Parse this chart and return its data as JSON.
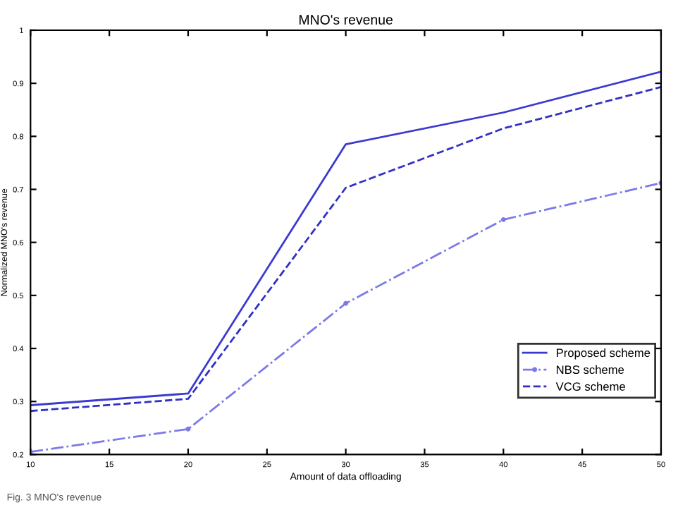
{
  "chart_data": {
    "type": "line",
    "title": "MNO's revenue",
    "xlabel": "Amount of data offloading",
    "ylabel": "Normalized MNO's revenue",
    "x": [
      10,
      20,
      30,
      40,
      50
    ],
    "series": [
      {
        "name": "Proposed scheme",
        "color": "#3a3ad0",
        "line_style": "solid",
        "marker": "none",
        "values": [
          0.293,
          0.315,
          0.785,
          0.845,
          0.922
        ]
      },
      {
        "name": "NBS scheme",
        "color": "#7a7ae8",
        "line_style": "dashdot",
        "marker": "point",
        "values": [
          0.205,
          0.248,
          0.485,
          0.643,
          0.712
        ]
      },
      {
        "name": "VCG scheme",
        "color": "#3030c8",
        "line_style": "dashed",
        "marker": "none",
        "values": [
          0.282,
          0.305,
          0.703,
          0.815,
          0.893
        ]
      }
    ],
    "xlim": [
      10,
      50
    ],
    "xticks": [
      10,
      15,
      20,
      25,
      30,
      35,
      40,
      45,
      50
    ],
    "ylim": [
      0.2,
      1
    ],
    "yticks": [
      0.2,
      0.3,
      0.4,
      0.5,
      0.6,
      0.7,
      0.8,
      0.9,
      1
    ],
    "grid": false,
    "legend": "bottom right",
    "annotations": [
      "Fig. 3 MNO's revenue"
    ]
  }
}
